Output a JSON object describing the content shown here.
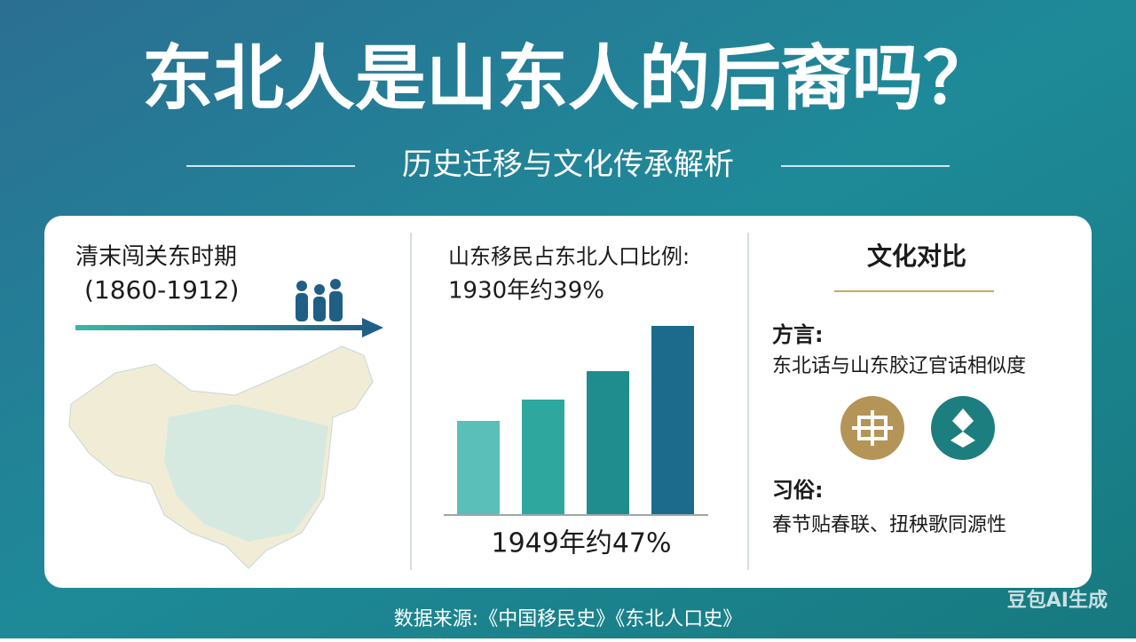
{
  "header": {
    "title": "东北人是山东人的后裔吗？",
    "subtitle": "历史迁移与文化传承解析"
  },
  "panels": [
    {
      "title": "清末闯关东时期",
      "period": "(1860-1912)"
    },
    {
      "title": "山东移民占东北人口比例:",
      "note_1930": "1930年约39%",
      "note_1949": "1949年约47%"
    },
    {
      "title": "文化对比",
      "items": [
        {
          "label": "方言:",
          "text": "东北话与山东胶辽官话相似度"
        },
        {
          "label": "习俗:",
          "text": "春节贴春联、扭秧歌同源性"
        }
      ]
    }
  ],
  "footer": {
    "source": "数据来源:《中国移民史》《东北人口史》",
    "watermark": "豆包AI生成"
  }
}
